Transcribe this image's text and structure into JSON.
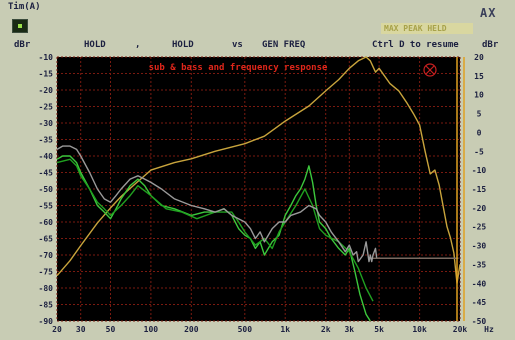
{
  "window": {
    "title": "Tim(A)",
    "controls": "AX",
    "status": "MAX PEAK HELD"
  },
  "control_bar": {
    "left_unit": "dBr",
    "hold1": "HOLD",
    "separator": ",",
    "hold2": "HOLD",
    "vs": "vs",
    "gen": "GEN FREQ",
    "hint": "Ctrl D to resume",
    "right_unit": "dBr"
  },
  "colors": {
    "plot_bg": "#000000",
    "grid": "#7a1a10",
    "title": "#e0261a",
    "tick_text": "#1c2040",
    "trace_yellow": "#c8a43c",
    "trace_green_a": "#3cc83c",
    "trace_green_b": "#20a020",
    "trace_gray": "#9a9a9a",
    "trace_brown": "#7a6a60",
    "marker_line": "#e0a020",
    "symbol": "#c82020"
  },
  "chart_data": {
    "type": "line",
    "title": "sub & bass and frequency response",
    "x_scale": "log",
    "xlim": [
      20,
      20000
    ],
    "x_ticks": [
      20,
      30,
      50,
      100,
      200,
      500,
      1000,
      2000,
      3000,
      5000,
      10000,
      20000
    ],
    "x_tick_labels": [
      "20",
      "30",
      "50",
      "100",
      "200",
      "500",
      "1k",
      "2k",
      "3k",
      "5k",
      "10k",
      "20k"
    ],
    "x_unit": "Hz",
    "ylim_left": [
      -90,
      -10
    ],
    "y_ticks_left": [
      -10,
      -15,
      -20,
      -25,
      -30,
      -35,
      -40,
      -45,
      -50,
      -55,
      -60,
      -65,
      -70,
      -75,
      -80,
      -85,
      -90
    ],
    "y_unit_left": "dBr",
    "ylim_right": [
      -50,
      20
    ],
    "y_ticks_right": [
      20,
      15,
      10,
      5,
      0,
      -5,
      -10,
      -15,
      -20,
      -25,
      -30,
      -35,
      -40,
      -45,
      -50
    ],
    "y_unit_right": "dBr",
    "grid": true,
    "legend": "none",
    "marker_x": 19000,
    "series": [
      {
        "axis": "right",
        "color": "#c8a43c",
        "points": [
          [
            20,
            -38
          ],
          [
            25,
            -34
          ],
          [
            30,
            -30
          ],
          [
            40,
            -24
          ],
          [
            50,
            -20
          ],
          [
            60,
            -17
          ],
          [
            80,
            -13
          ],
          [
            100,
            -10
          ],
          [
            150,
            -8
          ],
          [
            200,
            -7
          ],
          [
            300,
            -5
          ],
          [
            500,
            -3
          ],
          [
            700,
            -1
          ],
          [
            1000,
            3
          ],
          [
            1500,
            7
          ],
          [
            2000,
            11
          ],
          [
            2500,
            14
          ],
          [
            3000,
            17
          ],
          [
            3500,
            19
          ],
          [
            4000,
            20
          ],
          [
            4300,
            19
          ],
          [
            4700,
            16
          ],
          [
            5000,
            17
          ],
          [
            6000,
            13
          ],
          [
            7000,
            11
          ],
          [
            8000,
            8
          ],
          [
            9000,
            5
          ],
          [
            10000,
            2
          ],
          [
            11000,
            -5
          ],
          [
            12000,
            -11
          ],
          [
            13000,
            -10
          ],
          [
            14000,
            -14
          ],
          [
            16000,
            -25
          ],
          [
            17000,
            -28
          ],
          [
            18000,
            -32
          ],
          [
            19000,
            -40
          ],
          [
            20000,
            -35
          ]
        ]
      },
      {
        "axis": "left",
        "color": "#3cc83c",
        "points": [
          [
            20,
            -41
          ],
          [
            22,
            -40
          ],
          [
            25,
            -40
          ],
          [
            28,
            -42
          ],
          [
            30,
            -45
          ],
          [
            35,
            -50
          ],
          [
            40,
            -55
          ],
          [
            45,
            -57
          ],
          [
            50,
            -59
          ],
          [
            55,
            -56
          ],
          [
            60,
            -53
          ],
          [
            70,
            -49
          ],
          [
            80,
            -47
          ],
          [
            90,
            -49
          ],
          [
            100,
            -52
          ],
          [
            120,
            -55
          ],
          [
            150,
            -56
          ],
          [
            200,
            -58
          ],
          [
            250,
            -57
          ],
          [
            300,
            -57
          ],
          [
            350,
            -56
          ],
          [
            400,
            -58
          ],
          [
            450,
            -62
          ],
          [
            500,
            -64
          ],
          [
            550,
            -65
          ],
          [
            600,
            -68
          ],
          [
            650,
            -66
          ],
          [
            700,
            -70
          ],
          [
            800,
            -66
          ],
          [
            900,
            -64
          ],
          [
            1000,
            -58
          ],
          [
            1100,
            -55
          ],
          [
            1200,
            -52
          ],
          [
            1300,
            -50
          ],
          [
            1400,
            -47
          ],
          [
            1500,
            -43
          ],
          [
            1600,
            -48
          ],
          [
            1700,
            -55
          ],
          [
            1800,
            -60
          ],
          [
            2000,
            -62
          ],
          [
            2200,
            -65
          ],
          [
            2500,
            -68
          ],
          [
            2800,
            -70
          ],
          [
            3000,
            -68
          ],
          [
            3300,
            -75
          ],
          [
            3600,
            -82
          ],
          [
            4000,
            -88
          ],
          [
            4300,
            -90
          ]
        ]
      },
      {
        "axis": "left",
        "color": "#20a020",
        "points": [
          [
            20,
            -42
          ],
          [
            25,
            -41
          ],
          [
            28,
            -43
          ],
          [
            30,
            -46
          ],
          [
            35,
            -50
          ],
          [
            40,
            -54
          ],
          [
            45,
            -56
          ],
          [
            50,
            -58
          ],
          [
            60,
            -55
          ],
          [
            70,
            -52
          ],
          [
            80,
            -49
          ],
          [
            100,
            -52
          ],
          [
            130,
            -56
          ],
          [
            170,
            -57
          ],
          [
            220,
            -59
          ],
          [
            300,
            -57
          ],
          [
            400,
            -57
          ],
          [
            450,
            -60
          ],
          [
            500,
            -63
          ],
          [
            600,
            -67
          ],
          [
            700,
            -65
          ],
          [
            800,
            -68
          ],
          [
            900,
            -63
          ],
          [
            1000,
            -60
          ],
          [
            1200,
            -55
          ],
          [
            1400,
            -50
          ],
          [
            1600,
            -55
          ],
          [
            1800,
            -62
          ],
          [
            2000,
            -64
          ],
          [
            2500,
            -66
          ],
          [
            3000,
            -69
          ],
          [
            3500,
            -74
          ],
          [
            4000,
            -80
          ],
          [
            4500,
            -84
          ]
        ]
      },
      {
        "axis": "left",
        "color": "#9a9a9a",
        "points": [
          [
            20,
            -38
          ],
          [
            22,
            -37
          ],
          [
            25,
            -37
          ],
          [
            28,
            -38
          ],
          [
            30,
            -40
          ],
          [
            35,
            -45
          ],
          [
            40,
            -50
          ],
          [
            45,
            -53
          ],
          [
            50,
            -54
          ],
          [
            55,
            -52
          ],
          [
            60,
            -50
          ],
          [
            70,
            -47
          ],
          [
            80,
            -46
          ],
          [
            90,
            -47
          ],
          [
            100,
            -48
          ],
          [
            120,
            -50
          ],
          [
            150,
            -53
          ],
          [
            200,
            -55
          ],
          [
            250,
            -56
          ],
          [
            300,
            -57
          ],
          [
            350,
            -56
          ],
          [
            400,
            -58
          ],
          [
            500,
            -60
          ],
          [
            550,
            -62
          ],
          [
            600,
            -65
          ],
          [
            650,
            -63
          ],
          [
            700,
            -66
          ],
          [
            800,
            -62
          ],
          [
            900,
            -60
          ],
          [
            1000,
            -60
          ],
          [
            1100,
            -58
          ],
          [
            1300,
            -57
          ],
          [
            1500,
            -55
          ],
          [
            1700,
            -56
          ],
          [
            1800,
            -58
          ],
          [
            2000,
            -60
          ],
          [
            2200,
            -63
          ],
          [
            2500,
            -66
          ],
          [
            2800,
            -69
          ],
          [
            3000,
            -67
          ],
          [
            3200,
            -70
          ],
          [
            3400,
            -69
          ],
          [
            3500,
            -72
          ],
          [
            3800,
            -70
          ],
          [
            4000,
            -66
          ],
          [
            4200,
            -72
          ],
          [
            4300,
            -70
          ],
          [
            4400,
            -72
          ],
          [
            4500,
            -70
          ],
          [
            4700,
            -68
          ],
          [
            4800,
            -71
          ],
          [
            19500,
            -71
          ]
        ]
      },
      {
        "axis": "left",
        "color": "#7a6a60",
        "points": [
          [
            4500,
            -71
          ],
          [
            19500,
            -71
          ]
        ]
      }
    ]
  }
}
